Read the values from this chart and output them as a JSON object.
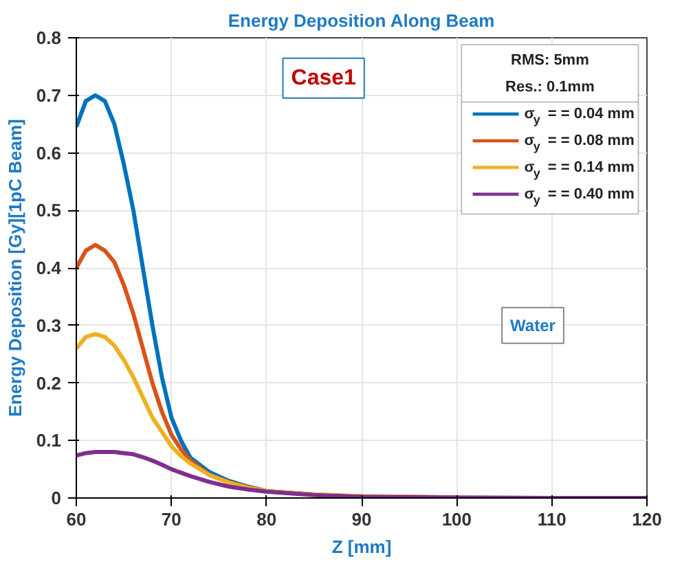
{
  "chart_data": {
    "type": "line",
    "title": "Energy Deposition Along Beam",
    "xlabel": "Z [mm]",
    "ylabel": "Energy Deposition [Gy][1pC Beam]",
    "legend_title": "RMS: 5mm\nRes.: 0.1mm",
    "x": [
      60,
      61,
      62,
      63,
      64,
      65,
      66,
      67,
      68,
      69,
      70,
      71,
      72,
      74,
      76,
      78,
      80,
      85,
      90,
      100,
      110,
      120
    ],
    "series": [
      {
        "name": "σ$_{y}$ = = 0.04 mm",
        "color": "#0072bd",
        "values": [
          0.645,
          0.69,
          0.7,
          0.69,
          0.65,
          0.58,
          0.5,
          0.4,
          0.3,
          0.21,
          0.14,
          0.1,
          0.07,
          0.045,
          0.03,
          0.02,
          0.012,
          0.006,
          null,
          null,
          null,
          null
        ]
      },
      {
        "name": "σ$_{y}$ = = 0.08 mm",
        "color": "#d95319",
        "values": [
          0.4,
          0.43,
          0.44,
          0.43,
          0.41,
          0.37,
          0.32,
          0.26,
          0.2,
          0.15,
          0.11,
          0.085,
          0.065,
          0.04,
          0.028,
          0.019,
          0.012,
          0.006,
          0.003,
          0.001,
          null,
          null
        ]
      },
      {
        "name": "σ$_{y}$ = = 0.14 mm",
        "color": "#edb120",
        "values": [
          0.26,
          0.28,
          0.285,
          0.28,
          0.265,
          0.24,
          0.21,
          0.175,
          0.14,
          0.115,
          0.09,
          0.073,
          0.06,
          0.04,
          0.027,
          0.018,
          0.012,
          0.006,
          0.003,
          0.001,
          null,
          null
        ]
      },
      {
        "name": "σ$_{y}$ = = 0.40 mm",
        "color": "#7e2f8e",
        "values": [
          0.074,
          0.078,
          0.08,
          0.08,
          0.08,
          0.078,
          0.076,
          0.071,
          0.065,
          0.058,
          0.05,
          0.044,
          0.038,
          0.028,
          0.02,
          0.015,
          0.011,
          0.005,
          0.002,
          0.001,
          0.0,
          0.0
        ]
      }
    ],
    "xlim": [
      60,
      120
    ],
    "xticks": [
      60,
      70,
      80,
      90,
      100,
      110,
      120
    ],
    "ylim": [
      0,
      0.8
    ],
    "yticks": [
      0,
      0.1,
      0.2,
      0.3,
      0.4,
      0.5,
      0.6,
      0.7,
      0.8
    ],
    "grid": true,
    "legend": "top right",
    "line_style": "solid",
    "annotations": [
      "Case1",
      "Water"
    ]
  }
}
